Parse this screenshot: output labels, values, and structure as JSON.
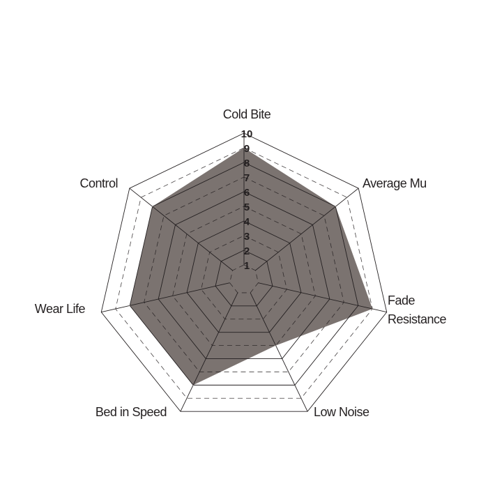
{
  "chart_data": {
    "type": "radar",
    "categories": [
      "Cold Bite",
      "Average Mu",
      "Fade Resistance",
      "Low Noise",
      "Bed in Speed",
      "Wear Life",
      "Control"
    ],
    "values": [
      9,
      8,
      9,
      5,
      8,
      8,
      8
    ],
    "rlim": [
      0,
      10
    ],
    "tick_labels": [
      "1",
      "2",
      "3",
      "4",
      "5",
      "6",
      "7",
      "8",
      "9",
      "10"
    ],
    "grid": "solid rings on even levels, dashed rings on odd levels",
    "colors": {
      "fill": "#7b7370",
      "grid": "#231f20"
    }
  }
}
